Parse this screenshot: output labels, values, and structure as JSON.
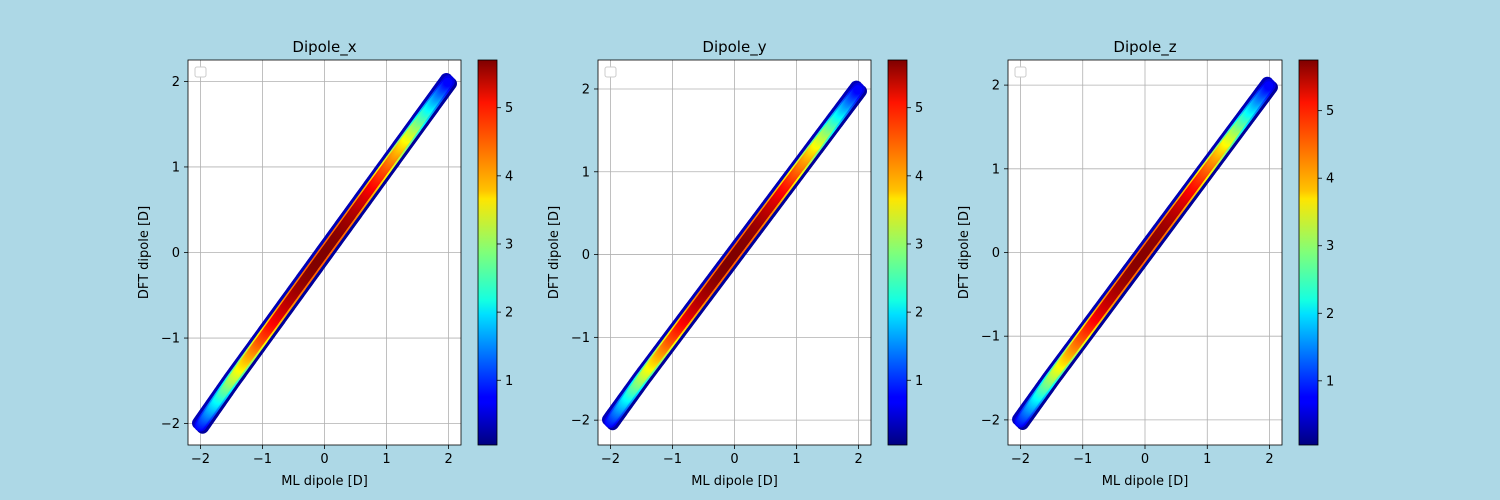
{
  "figure": {
    "background": "#add8e6",
    "colormap": "jet"
  },
  "chart_data": [
    {
      "type": "scatter",
      "title": "Dipole_x",
      "xlabel": "ML dipole [D]",
      "ylabel": "DFT dipole [D]",
      "xlim": [
        -2.2,
        2.2
      ],
      "ylim": [
        -2.25,
        2.25
      ],
      "xticks": [
        -2,
        -1,
        0,
        1,
        2
      ],
      "yticks": [
        -2,
        -1,
        0,
        1,
        2
      ],
      "grid": true,
      "legend": "top-left (empty)",
      "colorbar": {
        "range": [
          0.05,
          5.7
        ],
        "ticks": [
          1,
          2,
          3,
          4,
          5
        ]
      },
      "series": [
        {
          "x": [
            -2.0,
            -1.5,
            -1.0,
            -0.5,
            0.0,
            0.5,
            1.0,
            1.5,
            2.0
          ],
          "y": [
            -2.02,
            -1.5,
            -1.0,
            -0.5,
            0.0,
            0.5,
            1.0,
            1.5,
            2.0
          ]
        }
      ]
    },
    {
      "type": "scatter",
      "title": "Dipole_y",
      "xlabel": "ML dipole [D]",
      "ylabel": "DFT dipole [D]",
      "xlim": [
        -2.2,
        2.2
      ],
      "ylim": [
        -2.3,
        2.35
      ],
      "xticks": [
        -2,
        -1,
        0,
        1,
        2
      ],
      "yticks": [
        -2,
        -1,
        0,
        1,
        2
      ],
      "grid": true,
      "legend": "top-left (empty)",
      "colorbar": {
        "range": [
          0.05,
          5.7
        ],
        "ticks": [
          1,
          2,
          3,
          4,
          5
        ]
      },
      "series": [
        {
          "x": [
            -2.0,
            -1.5,
            -1.0,
            -0.5,
            0.0,
            0.5,
            1.0,
            1.5,
            2.0
          ],
          "y": [
            -2.02,
            -1.5,
            -1.0,
            -0.5,
            0.0,
            0.5,
            1.0,
            1.5,
            2.0
          ]
        }
      ]
    },
    {
      "type": "scatter",
      "title": "Dipole_z",
      "xlabel": "ML dipole [D]",
      "ylabel": "DFT dipole [D]",
      "xlim": [
        -2.2,
        2.2
      ],
      "ylim": [
        -2.3,
        2.3
      ],
      "xticks": [
        -2,
        -1,
        0,
        1,
        2
      ],
      "yticks": [
        -2,
        -1,
        0,
        1,
        2
      ],
      "grid": true,
      "legend": "top-left (empty)",
      "colorbar": {
        "range": [
          0.05,
          5.75
        ],
        "ticks": [
          1,
          2,
          3,
          4,
          5
        ]
      },
      "series": [
        {
          "x": [
            -2.0,
            -1.5,
            -1.0,
            -0.5,
            0.0,
            0.5,
            1.0,
            1.5,
            2.0
          ],
          "y": [
            -2.02,
            -1.5,
            -1.0,
            -0.5,
            0.0,
            0.5,
            1.0,
            1.5,
            2.0
          ]
        }
      ]
    }
  ]
}
